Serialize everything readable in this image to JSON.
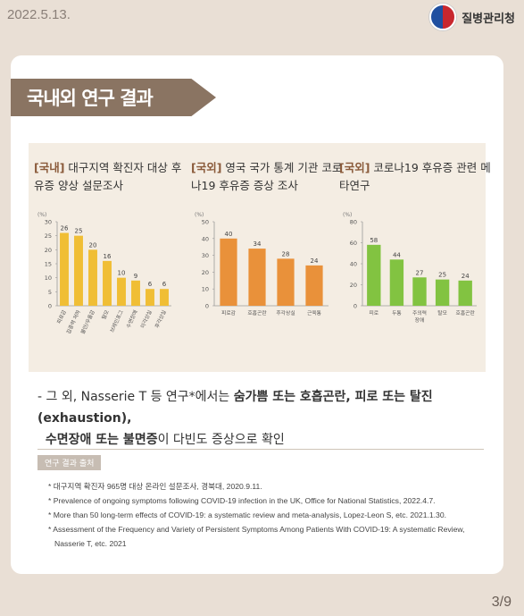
{
  "header": {
    "date": "2022.5.13.",
    "org": "질병관리청"
  },
  "section_title": "국내외 연구 결과",
  "chart_data": [
    {
      "type": "bar",
      "title_tag": "[국내]",
      "title": "대구지역 확진자 대상 후유증 양상 설문조사",
      "unit": "(%)",
      "ylim": [
        0,
        30
      ],
      "yticks": [
        0,
        5,
        10,
        15,
        20,
        25,
        30
      ],
      "categories": [
        "피로감",
        "집중력 저하",
        "불안/우울감",
        "탈모",
        "브레인포그",
        "수면장애",
        "미각상실",
        "후각상실"
      ],
      "values": [
        26,
        25,
        20,
        16,
        10,
        9,
        6,
        6
      ],
      "color": "#f0be35"
    },
    {
      "type": "bar",
      "title_tag": "[국외]",
      "title": "영국 국가 통계 기관 코로나19 후유증 증상 조사",
      "unit": "(%)",
      "ylim": [
        0,
        50
      ],
      "yticks": [
        0,
        10,
        20,
        30,
        40,
        50
      ],
      "categories": [
        "피로감",
        "호흡곤란",
        "후각상실",
        "근육통"
      ],
      "values": [
        40,
        34,
        28,
        24
      ],
      "color": "#e9913a"
    },
    {
      "type": "bar",
      "title_tag": "[국외]",
      "title": "코로나19 후유증 관련 메타연구",
      "unit": "(%)",
      "ylim": [
        0,
        80
      ],
      "yticks": [
        0,
        20,
        40,
        60,
        80
      ],
      "categories": [
        "피로",
        "두통",
        "주의력 장애",
        "탈모",
        "호흡곤란"
      ],
      "values": [
        58,
        44,
        27,
        25,
        24
      ],
      "color": "#82c341"
    }
  ],
  "summary": {
    "prefix": "- 그 외, Nasserie T 등 연구*에서는 ",
    "bold1": "숨가쁨 또는 호흡곤란, 피로 또는 탈진(exhaustion),",
    "bold2": "수면장애 또는 불면증",
    "suffix": "이 다빈도 증상으로 확인"
  },
  "sources": {
    "label": "연구 결과 출처",
    "items": [
      "* 대구지역 확진자 965명 대상 온라인 설문조사, 경북대, 2020.9.11.",
      "* Prevalence of ongoing symptoms following COVID-19 infection in the UK, Office for National Statistics, 2022.4.7.",
      "* More than 50 long-term effects of COVID-19: a systematic review and meta-analysis, Lopez-Leon S, etc. 2021.1.30.",
      "* Assessment of the Frequency and Variety of Persistent Symptoms Among Patients With COVID-19: A systematic Review, Nasserie T, etc. 2021"
    ]
  },
  "page": "3/9"
}
